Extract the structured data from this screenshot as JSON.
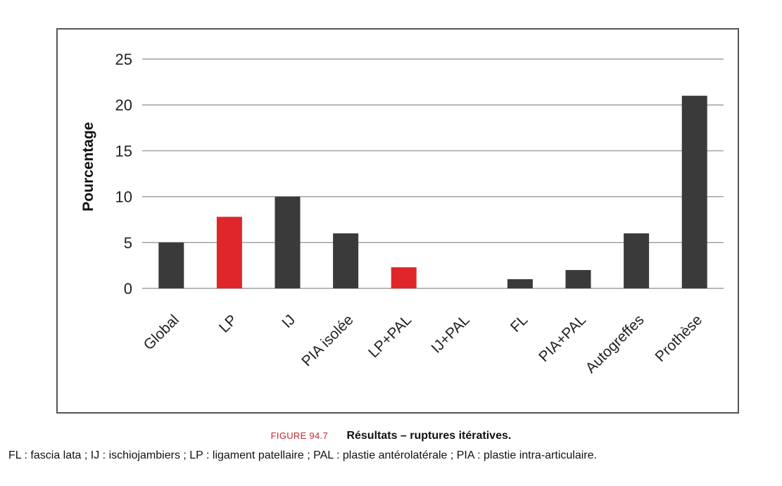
{
  "chart_data": {
    "type": "bar",
    "categories": [
      "Global",
      "LP",
      "IJ",
      "PIA isolée",
      "LP+PAL",
      "IJ+PAL",
      "FL",
      "PIA+PAL",
      "Autogreffes",
      "Prothèse"
    ],
    "values": [
      5,
      7.8,
      10,
      6,
      2.3,
      0,
      1,
      2,
      6,
      21
    ],
    "bar_colors": [
      "#3a3a3a",
      "#e0262b",
      "#3a3a3a",
      "#3a3a3a",
      "#e0262b",
      "#3a3a3a",
      "#3a3a3a",
      "#3a3a3a",
      "#3a3a3a",
      "#3a3a3a"
    ],
    "ylabel": "Pourcentage",
    "ylim": [
      0,
      25
    ],
    "yticks": [
      0,
      5,
      10,
      15,
      20,
      25
    ],
    "grid": true,
    "legend": "none"
  },
  "caption": {
    "label": "FIGURE 94.7",
    "title": "Résultats – ruptures itératives."
  },
  "note": "FL : fascia lata ; IJ : ischiojambiers ; LP : ligament patellaire ; PAL : plastie antérolatérale ; PIA : plastie intra-articulaire.",
  "colors": {
    "frame": "#555555",
    "grid": "#a0a0a0",
    "bar_dark": "#3a3a3a",
    "bar_highlight": "#e0262b",
    "caption_label": "#c0282d"
  }
}
